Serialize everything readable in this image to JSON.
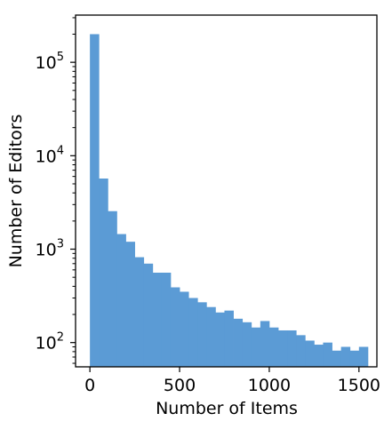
{
  "chart_data": {
    "type": "bar",
    "xlabel": "Number of Items",
    "ylabel": "Number of Editors",
    "yscale": "log",
    "xlim": [
      -80,
      1600
    ],
    "ylim": [
      55,
      320000
    ],
    "bin_width": 50,
    "x": [
      0,
      50,
      100,
      150,
      200,
      250,
      300,
      350,
      400,
      450,
      500,
      550,
      600,
      650,
      700,
      750,
      800,
      850,
      900,
      950,
      1000,
      1050,
      1100,
      1150,
      1200,
      1250,
      1300,
      1350,
      1400,
      1450,
      1500
    ],
    "values": [
      200000,
      5700,
      2550,
      1450,
      1200,
      820,
      700,
      560,
      560,
      390,
      350,
      300,
      270,
      240,
      210,
      220,
      180,
      165,
      145,
      170,
      145,
      135,
      135,
      120,
      105,
      95,
      100,
      82,
      90,
      82,
      90
    ],
    "xticks": [
      {
        "value": 0,
        "label": "0"
      },
      {
        "value": 500,
        "label": "500"
      },
      {
        "value": 1000,
        "label": "1000"
      },
      {
        "value": 1500,
        "label": "1500"
      }
    ],
    "yticks": [
      {
        "value": 100,
        "base": "10",
        "exp": "2"
      },
      {
        "value": 1000,
        "base": "10",
        "exp": "3"
      },
      {
        "value": 10000,
        "base": "10",
        "exp": "4"
      },
      {
        "value": 100000,
        "base": "10",
        "exp": "5"
      }
    ],
    "grid": false,
    "colors": {
      "bar": "#5b9bd5",
      "axis": "#000000"
    }
  }
}
